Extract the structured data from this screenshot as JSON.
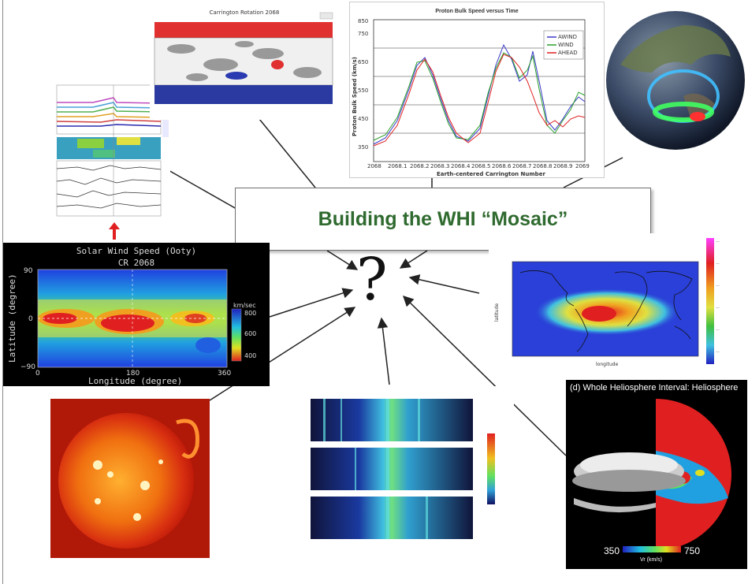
{
  "title": "Building the WHI “Mosaic”",
  "center_symbol": "?",
  "panels": {
    "stack_plot": {},
    "carrington_map": {
      "title": "Carrington Rotation 2068"
    },
    "proton_speed": {
      "title": "Proton Bulk Speed versus Time",
      "ylabel": "Proton Bulk Speed (km/s)",
      "xlabel": "Earth-centered Carrington Number",
      "legend": [
        {
          "name": "AWIND",
          "color": "#3a3ac8"
        },
        {
          "name": "WIND",
          "color": "#2aa02a"
        },
        {
          "name": "AHEAD",
          "color": "#e02020"
        }
      ],
      "yticks": [
        "350",
        "450",
        "550",
        "650",
        "750",
        "850"
      ],
      "xticks": [
        "2068",
        "2068.1",
        "2068.2",
        "2068.3",
        "2068.4",
        "2068.5",
        "2068.6",
        "2068.7",
        "2068.8",
        "2068.9",
        "2069"
      ]
    },
    "globe": {},
    "solar_wind_map": {
      "title": "Solar Wind Speed (Ooty)",
      "subtitle": "CR 2068",
      "ylabel": "Latitude (degree)",
      "xlabel": "Longitude (degree)",
      "yticks": [
        "90",
        "0",
        "−90"
      ],
      "xticks": [
        "0",
        "180",
        "360"
      ],
      "colorbar_label": "km/sec",
      "colorbar_ticks": [
        "800",
        "600",
        "400"
      ]
    },
    "world_map": {
      "ylabel": "latitude",
      "xlabel": "longitude"
    },
    "sun_image": {},
    "spectrogram": {},
    "heliosphere": {
      "title": "(d) Whole Heliosphere Interval: Heliosphere",
      "colorbar_min": "350",
      "colorbar_max": "750",
      "colorbar_label": "Vr (km/s)"
    }
  }
}
